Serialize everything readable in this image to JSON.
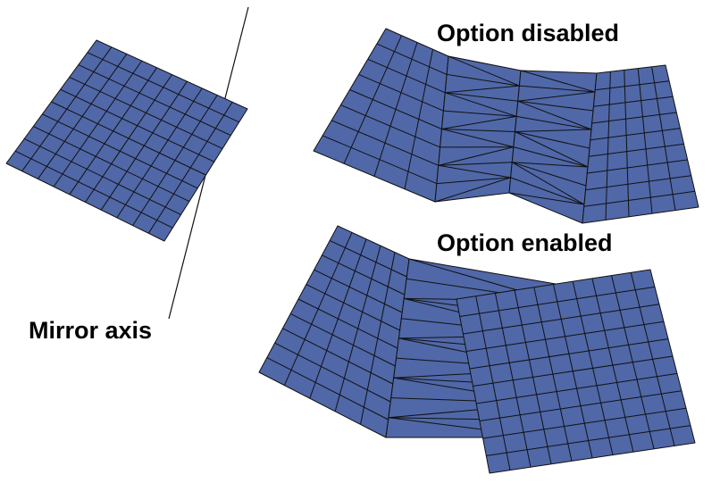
{
  "labels": {
    "option_disabled": "Option disabled",
    "option_enabled": "Option enabled",
    "mirror_axis": "Mirror axis"
  },
  "colors": {
    "mesh_fill": "#5068a8",
    "mesh_stroke": "#111111",
    "axis_stroke": "#111111",
    "background": "#ffffff"
  }
}
